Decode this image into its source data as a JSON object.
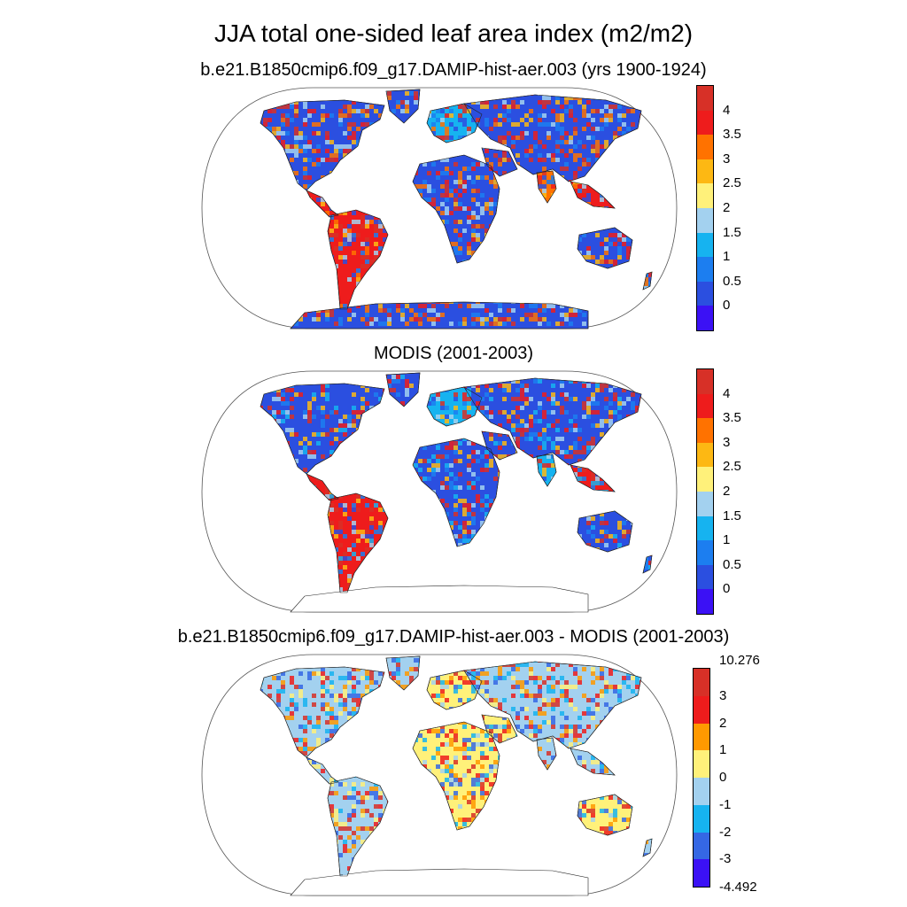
{
  "title": "JJA total one-sided leaf area index (m2/m2)",
  "panels": [
    {
      "subtitle": "b.e21.B1850cmip6.f09_g17.DAMIP-hist-aer.003 (yrs 1900-1924)",
      "colorbar": {
        "labels": [
          "4",
          "3.5",
          "3",
          "2.5",
          "2",
          "1.5",
          "1",
          "0.5",
          "0"
        ],
        "colors": [
          "#d73027",
          "#ee1c1c",
          "#ff7200",
          "#fdb813",
          "#fff17a",
          "#a3d1ef",
          "#16b3f0",
          "#1c7ef0",
          "#2b4fe0",
          "#3b11f5"
        ]
      }
    },
    {
      "subtitle": "MODIS (2001-2003)",
      "colorbar": {
        "labels": [
          "4",
          "3.5",
          "3",
          "2.5",
          "2",
          "1.5",
          "1",
          "0.5",
          "0"
        ],
        "colors": [
          "#d73027",
          "#ee1c1c",
          "#ff7200",
          "#fdb813",
          "#fff17a",
          "#a3d1ef",
          "#16b3f0",
          "#1c7ef0",
          "#2b4fe0",
          "#3b11f5"
        ]
      }
    },
    {
      "subtitle": "b.e21.B1850cmip6.f09_g17.DAMIP-hist-aer.003 - MODIS (2001-2003)",
      "colorbar": {
        "labels": [
          "10.276",
          "3",
          "2",
          "1",
          "0",
          "-1",
          "-2",
          "-3",
          "-4.492"
        ],
        "colors": [
          "#d73027",
          "#ee1c1c",
          "#ff9900",
          "#fff17a",
          "#a3d1ef",
          "#16b3f0",
          "#3567e4",
          "#3b11f5"
        ]
      }
    }
  ]
}
